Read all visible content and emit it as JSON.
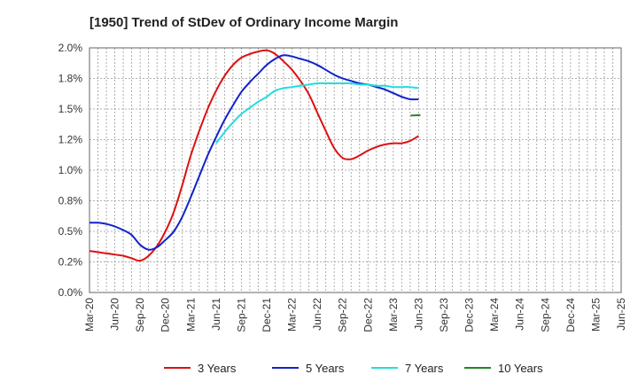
{
  "chart_data": {
    "type": "line",
    "title": "[1950]  Trend of StDev of Ordinary Income Margin",
    "xlabel": "",
    "ylabel": "",
    "ylim": [
      0,
      2.0
    ],
    "y_ticks": [
      "0.0%",
      "0.2%",
      "0.5%",
      "0.8%",
      "1.0%",
      "1.2%",
      "1.5%",
      "1.8%",
      "2.0%"
    ],
    "x_ticks": [
      "Mar-20",
      "Jun-20",
      "Sep-20",
      "Dec-20",
      "Mar-21",
      "Jun-21",
      "Sep-21",
      "Dec-21",
      "Mar-22",
      "Jun-22",
      "Sep-22",
      "Dec-22",
      "Mar-23",
      "Jun-23",
      "Sep-23",
      "Dec-23",
      "Mar-24",
      "Jun-24",
      "Sep-24",
      "Dec-24",
      "Mar-25",
      "Jun-25"
    ],
    "grid": true,
    "legend_position": "bottom",
    "series": [
      {
        "name": "3 Years",
        "color": "#dd1111",
        "start_index": 0,
        "values": [
          0.34,
          0.33,
          0.32,
          0.31,
          0.3,
          0.28,
          0.26,
          0.3,
          0.38,
          0.5,
          0.66,
          0.88,
          1.12,
          1.32,
          1.5,
          1.65,
          1.77,
          1.86,
          1.92,
          1.95,
          1.97,
          1.98,
          1.95,
          1.89,
          1.82,
          1.73,
          1.62,
          1.47,
          1.32,
          1.18,
          1.1,
          1.09,
          1.12,
          1.16,
          1.19,
          1.21,
          1.22,
          1.22,
          1.24,
          1.28
        ]
      },
      {
        "name": "5 Years",
        "color": "#1122cc",
        "start_index": 0,
        "values": [
          0.57,
          0.57,
          0.56,
          0.54,
          0.51,
          0.47,
          0.39,
          0.35,
          0.37,
          0.43,
          0.5,
          0.62,
          0.78,
          0.95,
          1.12,
          1.27,
          1.41,
          1.53,
          1.64,
          1.72,
          1.79,
          1.86,
          1.91,
          1.94,
          1.93,
          1.91,
          1.89,
          1.86,
          1.82,
          1.78,
          1.75,
          1.73,
          1.71,
          1.7,
          1.68,
          1.66,
          1.63,
          1.6,
          1.58,
          1.58
        ]
      },
      {
        "name": "7 Years",
        "color": "#22dddd",
        "start_index": 15,
        "values": [
          1.22,
          1.31,
          1.39,
          1.46,
          1.51,
          1.56,
          1.6,
          1.65,
          1.67,
          1.68,
          1.69,
          1.7,
          1.71,
          1.71,
          1.71,
          1.71,
          1.71,
          1.7,
          1.7,
          1.69,
          1.69,
          1.68,
          1.68,
          1.68,
          1.67
        ]
      },
      {
        "name": "10 Years",
        "color": "#228822",
        "start_index": 39,
        "values": [
          1.45
        ]
      }
    ]
  }
}
